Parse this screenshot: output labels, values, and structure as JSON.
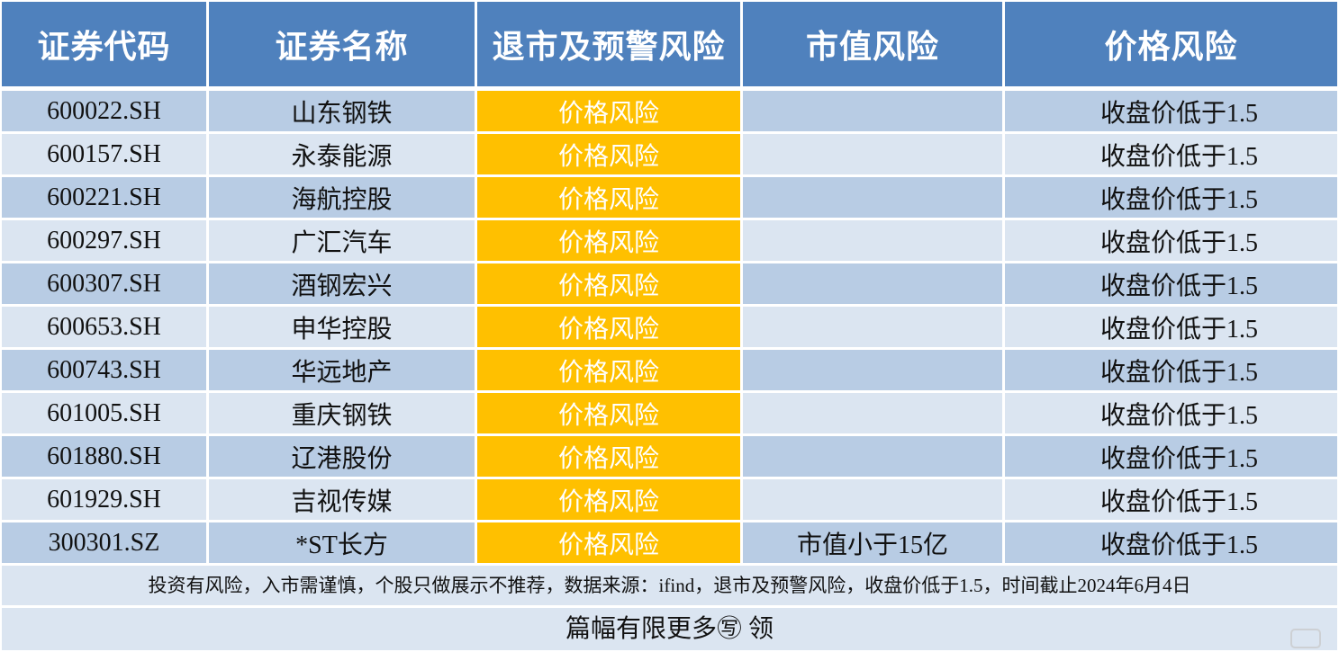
{
  "headers": [
    "证券代码",
    "证券名称",
    "退市及预警风险",
    "市值风险",
    "价格风险"
  ],
  "rows": [
    {
      "code": "600022.SH",
      "name": "山东钢铁",
      "delist": "价格风险",
      "cap": "",
      "price": "收盘价低于1.5"
    },
    {
      "code": "600157.SH",
      "name": "永泰能源",
      "delist": "价格风险",
      "cap": "",
      "price": "收盘价低于1.5"
    },
    {
      "code": "600221.SH",
      "name": "海航控股",
      "delist": "价格风险",
      "cap": "",
      "price": "收盘价低于1.5"
    },
    {
      "code": "600297.SH",
      "name": "广汇汽车",
      "delist": "价格风险",
      "cap": "",
      "price": "收盘价低于1.5"
    },
    {
      "code": "600307.SH",
      "name": "酒钢宏兴",
      "delist": "价格风险",
      "cap": "",
      "price": "收盘价低于1.5"
    },
    {
      "code": "600653.SH",
      "name": "申华控股",
      "delist": "价格风险",
      "cap": "",
      "price": "收盘价低于1.5"
    },
    {
      "code": "600743.SH",
      "name": "华远地产",
      "delist": "价格风险",
      "cap": "",
      "price": "收盘价低于1.5"
    },
    {
      "code": "601005.SH",
      "name": "重庆钢铁",
      "delist": "价格风险",
      "cap": "",
      "price": "收盘价低于1.5"
    },
    {
      "code": "601880.SH",
      "name": "辽港股份",
      "delist": "价格风险",
      "cap": "",
      "price": "收盘价低于1.5"
    },
    {
      "code": "601929.SH",
      "name": "吉视传媒",
      "delist": "价格风险",
      "cap": "",
      "price": "收盘价低于1.5"
    },
    {
      "code": "300301.SZ",
      "name": "*ST长方",
      "delist": "价格风险",
      "cap": "市值小于15亿",
      "price": "收盘价低于1.5"
    }
  ],
  "note": "投资有风险，入市需谨慎，个股只做展示不推荐，数据来源：ifind，退市及预警风险，收盘价低于1.5，时间截止2024年6月4日",
  "more": "篇幅有限更多㊢ 领",
  "colors": {
    "header": "#4f81bd",
    "row_dark": "#b8cce4",
    "row_light": "#dbe5f1",
    "warning": "#ffc000"
  }
}
